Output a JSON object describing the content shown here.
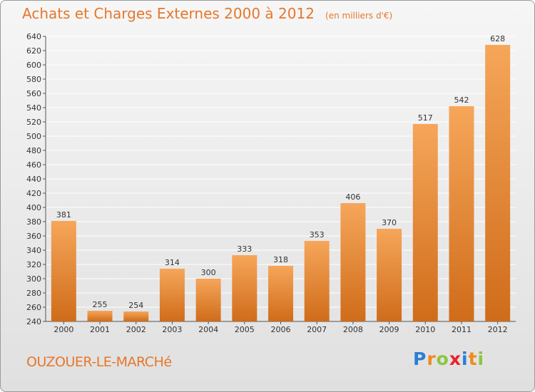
{
  "header": {
    "title": "Achats et Charges Externes 2000 à 2012",
    "unit": "(en milliers d'€)"
  },
  "footer": {
    "commune": "OUZOUER-LE-MARCHé",
    "brand_letters": [
      "P",
      "r",
      "o",
      "x",
      "i",
      "t",
      "i"
    ],
    "brand_colors": [
      "#2a7fd4",
      "#f08a1c",
      "#8dc63f",
      "#e8232a",
      "#2a7fd4",
      "#f08a1c",
      "#8dc63f"
    ]
  },
  "colors": {
    "bar_top": "#f6a65a",
    "bar_bottom": "#cf6c1a",
    "grid": "#ffffff",
    "axis": "#555555"
  },
  "chart_data": {
    "type": "bar",
    "title": "Achats et Charges Externes 2000 à 2012",
    "subtitle": "(en milliers d'€)",
    "categories": [
      "2000",
      "2001",
      "2002",
      "2003",
      "2004",
      "2005",
      "2006",
      "2007",
      "2008",
      "2009",
      "2010",
      "2011",
      "2012"
    ],
    "values": [
      381,
      255,
      254,
      314,
      300,
      333,
      318,
      353,
      406,
      370,
      517,
      542,
      628
    ],
    "ylim": [
      240,
      640
    ],
    "ytick_step": 20,
    "grid": true,
    "xlabel": "",
    "ylabel": ""
  }
}
